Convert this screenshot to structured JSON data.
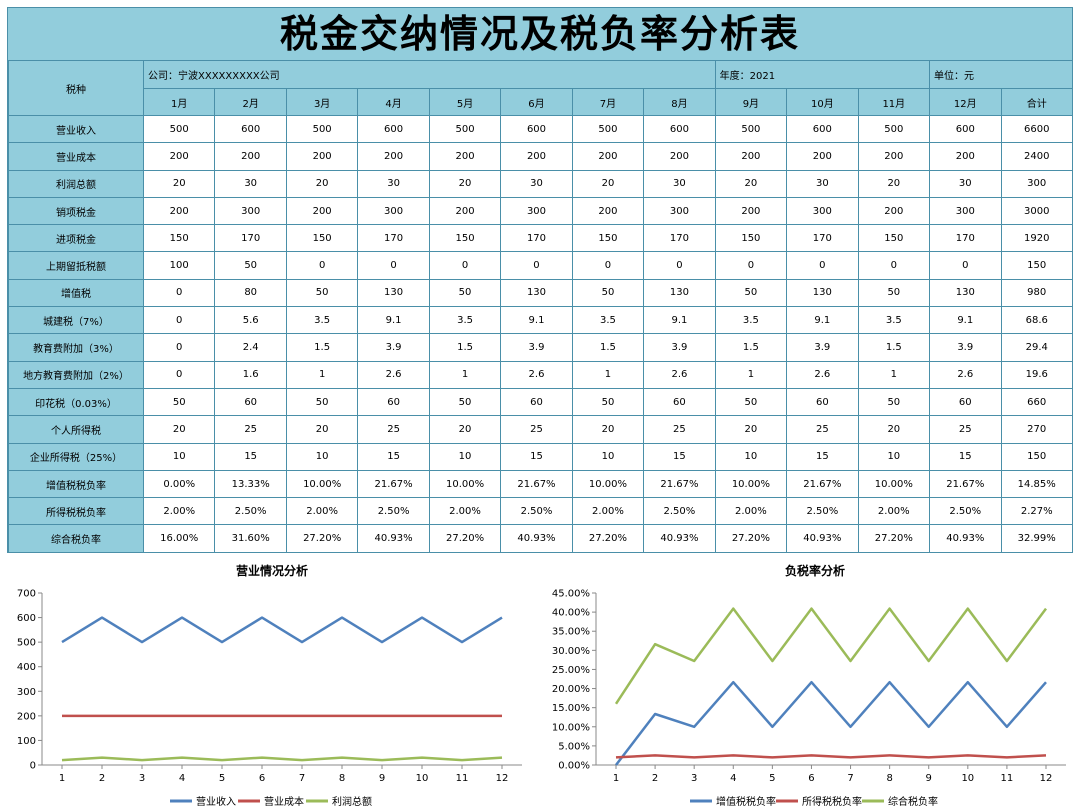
{
  "title": "税金交纳情况及税负率分析表",
  "header": {
    "tax_type_label": "税种",
    "company": "公司：宁波XXXXXXXXX公司",
    "year": "年度：2021",
    "unit": "单位：元",
    "months": [
      "1月",
      "2月",
      "3月",
      "4月",
      "5月",
      "6月",
      "7月",
      "8月",
      "9月",
      "10月",
      "11月",
      "12月"
    ],
    "total_label": "合计"
  },
  "rows": [
    {
      "label": "营业收入",
      "values": [
        "500",
        "600",
        "500",
        "600",
        "500",
        "600",
        "500",
        "600",
        "500",
        "600",
        "500",
        "600"
      ],
      "total": "6600"
    },
    {
      "label": "营业成本",
      "values": [
        "200",
        "200",
        "200",
        "200",
        "200",
        "200",
        "200",
        "200",
        "200",
        "200",
        "200",
        "200"
      ],
      "total": "2400"
    },
    {
      "label": "利润总额",
      "values": [
        "20",
        "30",
        "20",
        "30",
        "20",
        "30",
        "20",
        "30",
        "20",
        "30",
        "20",
        "30"
      ],
      "total": "300"
    },
    {
      "label": "销项税金",
      "values": [
        "200",
        "300",
        "200",
        "300",
        "200",
        "300",
        "200",
        "300",
        "200",
        "300",
        "200",
        "300"
      ],
      "total": "3000"
    },
    {
      "label": "进项税金",
      "values": [
        "150",
        "170",
        "150",
        "170",
        "150",
        "170",
        "150",
        "170",
        "150",
        "170",
        "150",
        "170"
      ],
      "total": "1920"
    },
    {
      "label": "上期留抵税额",
      "values": [
        "100",
        "50",
        "0",
        "0",
        "0",
        "0",
        "0",
        "0",
        "0",
        "0",
        "0",
        "0"
      ],
      "total": "150"
    },
    {
      "label": "增值税",
      "values": [
        "0",
        "80",
        "50",
        "130",
        "50",
        "130",
        "50",
        "130",
        "50",
        "130",
        "50",
        "130"
      ],
      "total": "980"
    },
    {
      "label": "城建税（7%）",
      "values": [
        "0",
        "5.6",
        "3.5",
        "9.1",
        "3.5",
        "9.1",
        "3.5",
        "9.1",
        "3.5",
        "9.1",
        "3.5",
        "9.1"
      ],
      "total": "68.6"
    },
    {
      "label": "教育费附加（3%）",
      "values": [
        "0",
        "2.4",
        "1.5",
        "3.9",
        "1.5",
        "3.9",
        "1.5",
        "3.9",
        "1.5",
        "3.9",
        "1.5",
        "3.9"
      ],
      "total": "29.4"
    },
    {
      "label": "地方教育费附加（2%）",
      "values": [
        "0",
        "1.6",
        "1",
        "2.6",
        "1",
        "2.6",
        "1",
        "2.6",
        "1",
        "2.6",
        "1",
        "2.6"
      ],
      "total": "19.6"
    },
    {
      "label": "印花税（0.03%）",
      "values": [
        "50",
        "60",
        "50",
        "60",
        "50",
        "60",
        "50",
        "60",
        "50",
        "60",
        "50",
        "60"
      ],
      "total": "660"
    },
    {
      "label": "个人所得税",
      "values": [
        "20",
        "25",
        "20",
        "25",
        "20",
        "25",
        "20",
        "25",
        "20",
        "25",
        "20",
        "25"
      ],
      "total": "270"
    },
    {
      "label": "企业所得税（25%）",
      "values": [
        "10",
        "15",
        "10",
        "15",
        "10",
        "15",
        "10",
        "15",
        "10",
        "15",
        "10",
        "15"
      ],
      "total": "150"
    },
    {
      "label": "增值税税负率",
      "values": [
        "0.00%",
        "13.33%",
        "10.00%",
        "21.67%",
        "10.00%",
        "21.67%",
        "10.00%",
        "21.67%",
        "10.00%",
        "21.67%",
        "10.00%",
        "21.67%"
      ],
      "total": "14.85%"
    },
    {
      "label": "所得税税负率",
      "values": [
        "2.00%",
        "2.50%",
        "2.00%",
        "2.50%",
        "2.00%",
        "2.50%",
        "2.00%",
        "2.50%",
        "2.00%",
        "2.50%",
        "2.00%",
        "2.50%"
      ],
      "total": "2.27%"
    },
    {
      "label": "综合税负率",
      "values": [
        "16.00%",
        "31.60%",
        "27.20%",
        "40.93%",
        "27.20%",
        "40.93%",
        "27.20%",
        "40.93%",
        "27.20%",
        "40.93%",
        "27.20%",
        "40.93%"
      ],
      "total": "32.99%"
    }
  ],
  "colors": {
    "header_bg": "#92cddc",
    "border": "#4a8fa8",
    "series_blue": "#4f81bd",
    "series_red": "#c0504d",
    "series_green": "#9bbb59"
  },
  "chart_data": [
    {
      "type": "line",
      "title": "营业情况分析",
      "x": [
        1,
        2,
        3,
        4,
        5,
        6,
        7,
        8,
        9,
        10,
        11,
        12
      ],
      "ylim": [
        0,
        700
      ],
      "yticks": [
        0,
        100,
        200,
        300,
        400,
        500,
        600,
        700
      ],
      "series": [
        {
          "name": "营业收入",
          "color": "#4f81bd",
          "values": [
            500,
            600,
            500,
            600,
            500,
            600,
            500,
            600,
            500,
            600,
            500,
            600
          ]
        },
        {
          "name": "营业成本",
          "color": "#c0504d",
          "values": [
            200,
            200,
            200,
            200,
            200,
            200,
            200,
            200,
            200,
            200,
            200,
            200
          ]
        },
        {
          "name": "利润总额",
          "color": "#9bbb59",
          "values": [
            20,
            30,
            20,
            30,
            20,
            30,
            20,
            30,
            20,
            30,
            20,
            30
          ]
        }
      ],
      "legend": "bottom",
      "grid": false
    },
    {
      "type": "line",
      "title": "负税率分析",
      "x": [
        1,
        2,
        3,
        4,
        5,
        6,
        7,
        8,
        9,
        10,
        11,
        12
      ],
      "ylim": [
        0,
        45
      ],
      "yticks": [
        "0.00%",
        "5.00%",
        "10.00%",
        "15.00%",
        "20.00%",
        "25.00%",
        "30.00%",
        "35.00%",
        "40.00%",
        "45.00%"
      ],
      "series": [
        {
          "name": "增值税税负率",
          "color": "#4f81bd",
          "values": [
            0,
            13.33,
            10,
            21.67,
            10,
            21.67,
            10,
            21.67,
            10,
            21.67,
            10,
            21.67
          ]
        },
        {
          "name": "所得税税负率",
          "color": "#c0504d",
          "values": [
            2,
            2.5,
            2,
            2.5,
            2,
            2.5,
            2,
            2.5,
            2,
            2.5,
            2,
            2.5
          ]
        },
        {
          "name": "综合税负率",
          "color": "#9bbb59",
          "values": [
            16,
            31.6,
            27.2,
            40.93,
            27.2,
            40.93,
            27.2,
            40.93,
            27.2,
            40.93,
            27.2,
            40.93
          ]
        }
      ],
      "legend": "bottom",
      "grid": false
    }
  ]
}
